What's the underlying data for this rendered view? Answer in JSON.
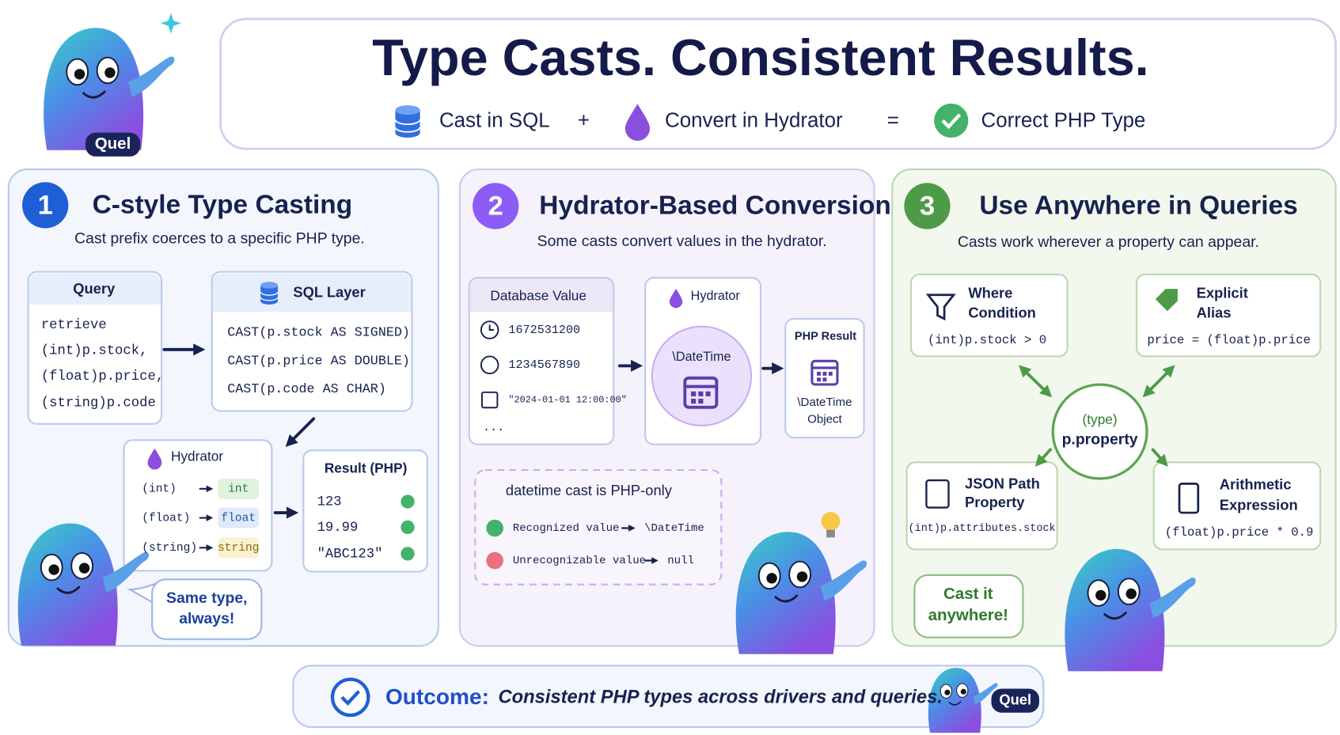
{
  "header": {
    "title": "Type Casts. Consistent Results.",
    "equation": [
      "Cast in SQL",
      "+",
      "Convert in Hydrator",
      "=",
      "Correct PHP Type"
    ],
    "badge": "Quel"
  },
  "panels": [
    {
      "number": "1",
      "title": "C-style Type Casting",
      "subtitle": "Cast prefix coerces to a specific PHP type.",
      "query": {
        "title": "Query",
        "lines": [
          "retrieve",
          "(int)p.stock,",
          "(float)p.price,",
          "(string)p.code"
        ]
      },
      "sql": {
        "title": "SQL Layer",
        "lines": [
          "CAST(p.stock AS SIGNED)",
          "CAST(p.price AS DOUBLE)",
          "CAST(p.code AS CHAR)"
        ]
      },
      "hydrator": {
        "title": "Hydrator",
        "rows": [
          {
            "from": "(int)",
            "to": "int"
          },
          {
            "from": "(float)",
            "to": "float"
          },
          {
            "from": "(string)",
            "to": "string"
          }
        ]
      },
      "result": {
        "title": "Result (PHP)",
        "rows": [
          "123",
          "19.99",
          "\"ABC123\""
        ]
      },
      "bubble": [
        "Same type,",
        "always!"
      ]
    },
    {
      "number": "2",
      "title": "Hydrator-Based Conversion",
      "subtitle": "Some casts convert values in the hydrator.",
      "db": {
        "title": "Database Value",
        "rows": [
          "1672531200",
          "1234567890",
          "\"2024-01-01 12:00:00\"",
          "..."
        ]
      },
      "hydrator": {
        "title": "Hydrator",
        "label": "\\DateTime"
      },
      "result": {
        "title": "PHP Result",
        "label": [
          "\\DateTime",
          "Object"
        ]
      },
      "note": {
        "title": "datetime cast is PHP-only",
        "rows": [
          {
            "from": "Recognized value",
            "to": "\\DateTime"
          },
          {
            "from": "Unrecognizable value",
            "to": "null"
          }
        ]
      }
    },
    {
      "number": "3",
      "title": "Use Anywhere in Queries",
      "subtitle": "Casts work wherever a property can appear.",
      "center": [
        "(type)",
        "p.property"
      ],
      "cards": [
        {
          "title": [
            "Where",
            "Condition"
          ],
          "code": "(int)p.stock > 0"
        },
        {
          "title": [
            "Explicit",
            "Alias"
          ],
          "code": "price = (float)p.price"
        },
        {
          "title": [
            "JSON Path",
            "Property"
          ],
          "code": "(int)p.attributes.stock"
        },
        {
          "title": [
            "Arithmetic",
            "Expression"
          ],
          "code": "(float)p.price * 0.9"
        }
      ],
      "bubble": [
        "Cast it",
        "anywhere!"
      ]
    }
  ],
  "footer": {
    "label": "Outcome:",
    "text": "Consistent PHP types across drivers and queries.",
    "badge": "Quel"
  }
}
